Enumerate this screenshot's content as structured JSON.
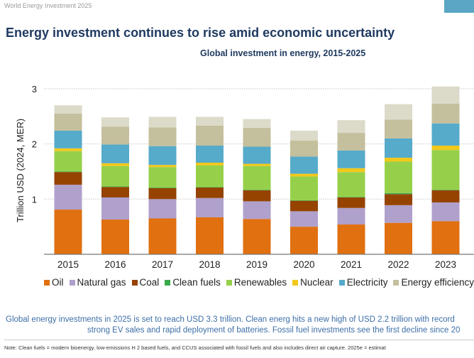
{
  "header": {
    "text": "World Energy Investment 2025",
    "accent_color": "#5aa6c4"
  },
  "title": "Energy investment continues to rise amid economic uncertainty",
  "chart_data": {
    "type": "bar",
    "stacked": true,
    "title": "Global investment in energy, 2015-2025",
    "ylabel": "Trillion USD (2024, MER)",
    "xlabel": "",
    "ylim": [
      0,
      3
    ],
    "yticks": [
      "1",
      "2",
      "3"
    ],
    "grid": true,
    "legend_position": "bottom",
    "categories": [
      "2015",
      "2016",
      "2017",
      "2018",
      "2019",
      "2020",
      "2021",
      "2022",
      "2023"
    ],
    "series": [
      {
        "name": "Oil",
        "color": "#e07010",
        "values": [
          0.81,
          0.63,
          0.65,
          0.67,
          0.64,
          0.5,
          0.54,
          0.57,
          0.6
        ]
      },
      {
        "name": "Natural gas",
        "color": "#b0a0cc",
        "values": [
          0.45,
          0.4,
          0.35,
          0.35,
          0.32,
          0.28,
          0.3,
          0.32,
          0.34
        ]
      },
      {
        "name": "Coal",
        "color": "#964300",
        "values": [
          0.23,
          0.19,
          0.2,
          0.19,
          0.2,
          0.19,
          0.19,
          0.2,
          0.22
        ]
      },
      {
        "name": "Clean fuels",
        "color": "#3aa84a",
        "values": [
          0.01,
          0.01,
          0.01,
          0.01,
          0.01,
          0.01,
          0.01,
          0.02,
          0.01
        ]
      },
      {
        "name": "Renewables",
        "color": "#96d04a",
        "values": [
          0.37,
          0.37,
          0.37,
          0.39,
          0.43,
          0.43,
          0.45,
          0.57,
          0.72
        ]
      },
      {
        "name": "Nuclear",
        "color": "#f2c81a",
        "values": [
          0.05,
          0.05,
          0.04,
          0.05,
          0.04,
          0.05,
          0.07,
          0.07,
          0.08
        ]
      },
      {
        "name": "Electricity",
        "color": "#56aaca",
        "values": [
          0.32,
          0.34,
          0.34,
          0.31,
          0.31,
          0.31,
          0.32,
          0.35,
          0.4
        ]
      },
      {
        "name": "Energy efficiency",
        "color": "#c4bf9c",
        "values": [
          0.31,
          0.32,
          0.34,
          0.36,
          0.34,
          0.29,
          0.32,
          0.34,
          0.36
        ]
      },
      {
        "color": "#dcdac8",
        "values": [
          0.15,
          0.17,
          0.19,
          0.16,
          0.16,
          0.18,
          0.23,
          0.28,
          0.31
        ]
      }
    ]
  },
  "summary": {
    "line1": "Global energy investments in 2025 is set to reach USD 3.3 trillion. Clean energ hits a new high of USD 2.2 trillion with record",
    "line2": "strong EV sales and rapid deployment of batteries. Fossil fuel investments see the first decline since 20"
  },
  "note": "Note: Clean fuels = modern bioenergy, low-emissions H 2 based fuels, and CCUS associated with fossil fuels and also includes direct air capture. 2025e = estimat"
}
